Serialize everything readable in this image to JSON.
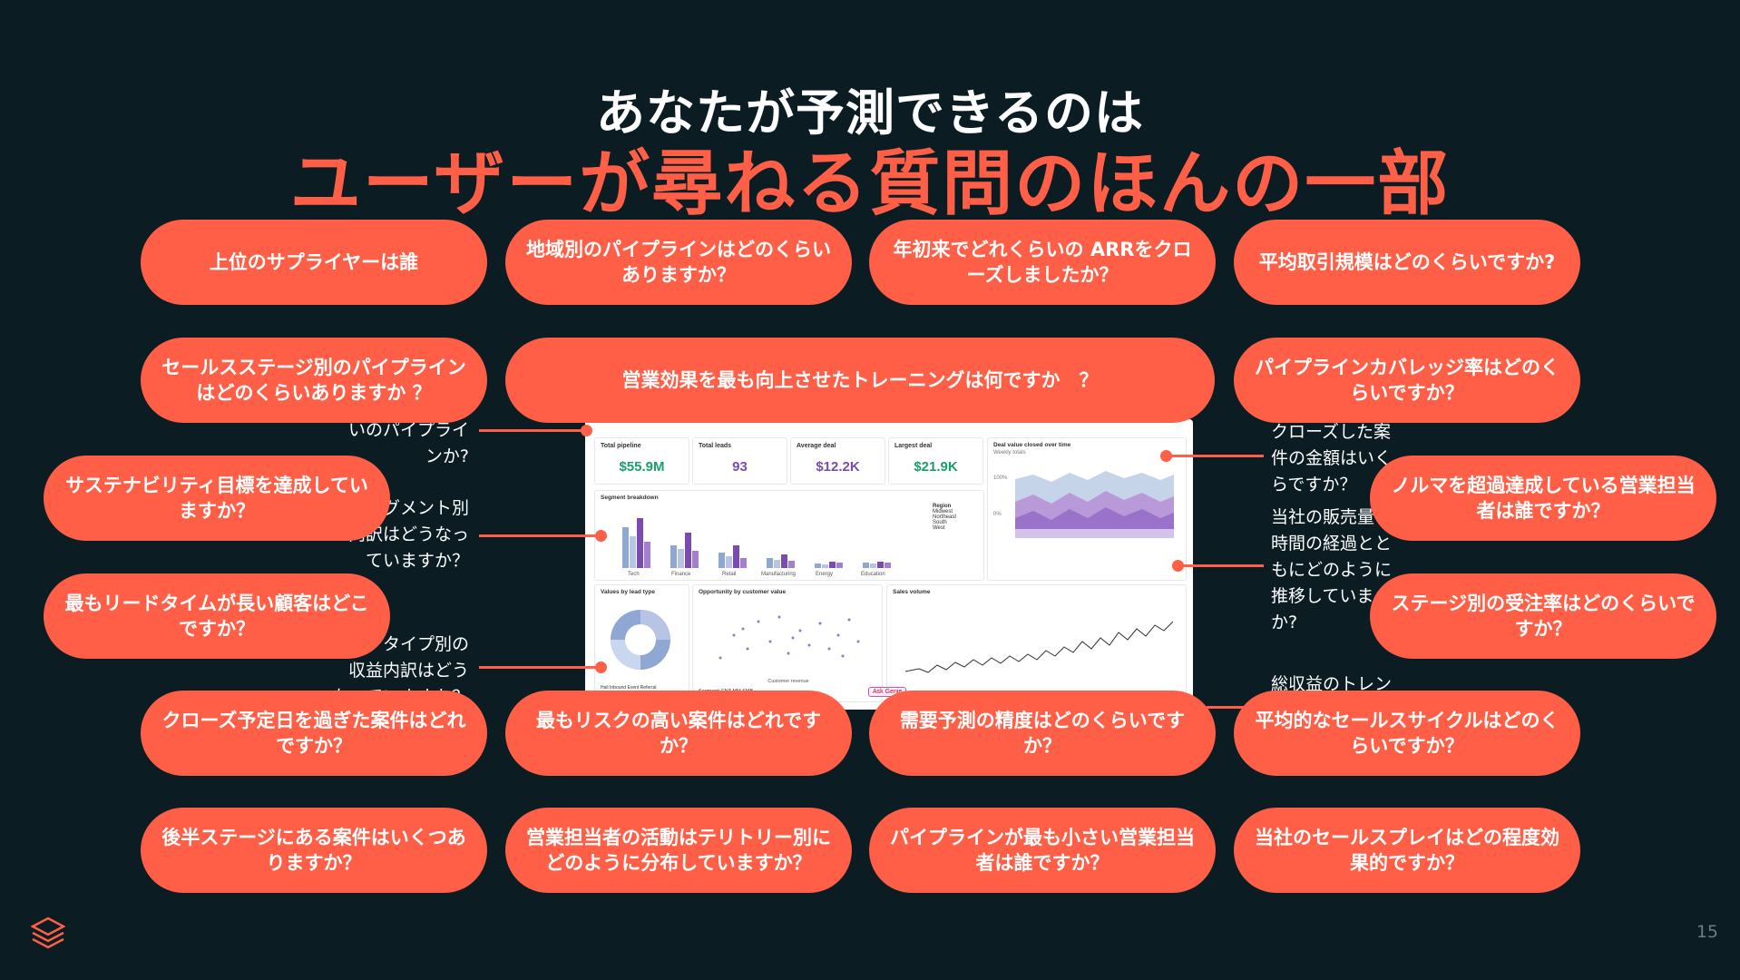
{
  "title": {
    "line1": "あなたが予測できるのは",
    "line2": "ユーザーが尋ねる質問のほんの一部"
  },
  "pills": {
    "top_supplier": "上位のサプライヤーは誰",
    "pipeline_by_region": "地域別のパイプラインはどのくらいありますか？",
    "ytd_arr": "年初来でどれくらいの ARRをクローズしましたか？",
    "avg_deal_size": "平均取引規模はどのくらいですか?",
    "pipeline_by_stage": "セールスステージ別のパイプラインはどのくらいありますか ？",
    "best_training": "営業効果を最も向上させたトレーニングは何ですか　？",
    "pipeline_coverage": "パイプラインカバレッジ率はどのくらいですか？",
    "sustainability": "サステナビリティ目標を達成していますか？",
    "over_quota": "ノルマを超過達成している営業担当者は誰ですか？",
    "longest_lead_time": "最もリードタイムが長い顧客はどこですか？",
    "win_rate_by_stage": "ステージ別の受注率はどのくらいですか？",
    "past_close_date": "クローズ予定日を過ぎた案件はどれですか？",
    "riskiest_deals": "最もリスクの高い案件はどれですか？",
    "forecast_accuracy": "需要予測の精度はどのくらいですか？",
    "avg_sales_cycle": "平均的なセールスサイクルはどのくらいですか？",
    "late_stage_count": "後半ステージにある案件はいくつありますか？",
    "rep_activity": "営業担当者の活動はテリトリー別にどのように分布していますか？",
    "smallest_pipeline_rep": "パイプラインが最も小さい営業担当者は誰ですか？",
    "sales_play_effectiveness": "当社のセールスプレイはどの程度効果的ですか？"
  },
  "notes": {
    "left1": [
      "いのパイプライ",
      "ンか?"
    ],
    "left2": [
      "グメント別",
      "の内訳はどうなっ",
      "ていますか？"
    ],
    "left3": [
      "タイプ別の",
      "収益内訳はどう",
      "なっていますか？"
    ],
    "right1": [
      "クローズした案",
      "件の金額はいく",
      "らですか？"
    ],
    "right2": [
      "当社の販売量",
      "時間の経過とと",
      "もにどのように",
      "推移していま",
      "か?"
    ],
    "right3": [
      "総収益のトレン"
    ]
  },
  "dashboard": {
    "kpis": [
      {
        "label": "Total pipeline",
        "value": "$55.9M",
        "color": "#17a06a"
      },
      {
        "label": "Total leads",
        "value": "93",
        "color": "#7a4bb0"
      },
      {
        "label": "Average deal",
        "value": "$12.2K",
        "color": "#7a4bb0"
      },
      {
        "label": "Largest deal",
        "value": "$21.9K",
        "color": "#17a06a"
      }
    ],
    "area_title": "Deal value closed over time",
    "area_sub": "Weekly totals",
    "segment_title": "Segment breakdown",
    "segments": [
      "Tech",
      "Finance",
      "Retail",
      "Manufacturing",
      "Energy",
      "Education"
    ],
    "region_title": "Region",
    "regions": [
      "Midwest",
      "Northeast",
      "South",
      "West"
    ],
    "lead_title": "Values by lead type",
    "lead_legend": [
      "Hall",
      "Inbound",
      "Event",
      "Referral"
    ],
    "scatter_title": "Opportunity by customer value",
    "scatter_xlabel": "Customer revenue",
    "scatter_segments": [
      "Segment:",
      "ENT",
      "MM",
      "SMB"
    ],
    "volume_title": "Sales volume",
    "ask": "Ask Genie"
  },
  "page_number": "15"
}
